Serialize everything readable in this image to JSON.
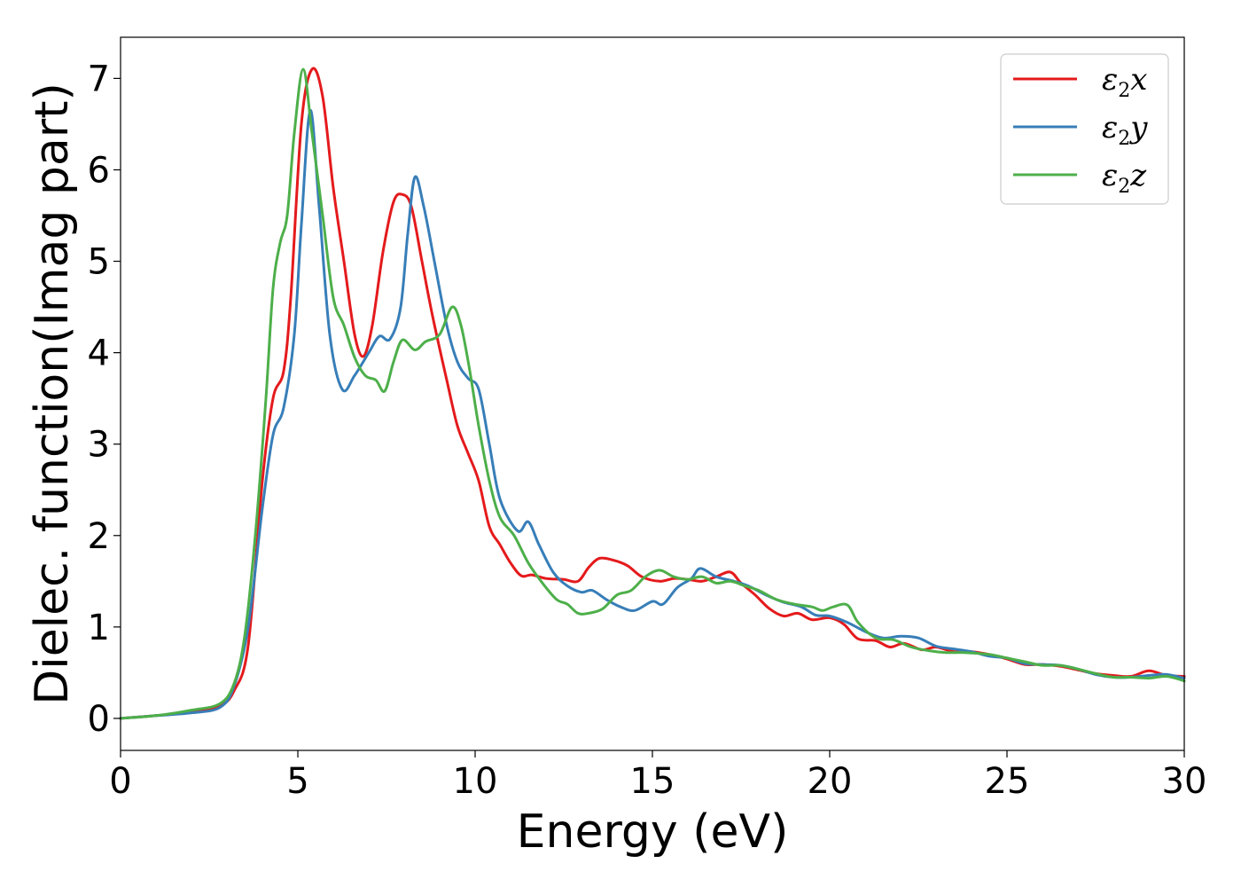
{
  "chart_data": {
    "type": "line",
    "title": "",
    "xlabel": "Energy (eV)",
    "ylabel": "Dielec. function(Imag part)",
    "xlim": [
      0,
      30
    ],
    "ylim": [
      -0.35,
      7.45
    ],
    "xticks": [
      0,
      5,
      10,
      15,
      20,
      25,
      30
    ],
    "yticks": [
      0,
      1,
      2,
      3,
      4,
      5,
      6,
      7
    ],
    "xtick_labels": [
      "0",
      "5",
      "10",
      "15",
      "20",
      "25",
      "30"
    ],
    "ytick_labels": [
      "0",
      "1",
      "2",
      "3",
      "4",
      "5",
      "6",
      "7"
    ],
    "grid": false,
    "legend_position": "top-right",
    "series": [
      {
        "name": "ε2x",
        "legend_symbol": "ε",
        "legend_subscript": "2",
        "legend_suffix": "x",
        "color": "#e41a1c",
        "points": [
          [
            0,
            0
          ],
          [
            1,
            0.03
          ],
          [
            2,
            0.07
          ],
          [
            2.8,
            0.14
          ],
          [
            3.2,
            0.3
          ],
          [
            3.6,
            0.8
          ],
          [
            4,
            2.6
          ],
          [
            4.3,
            3.5
          ],
          [
            4.6,
            3.8
          ],
          [
            4.8,
            4.6
          ],
          [
            5.1,
            6.5
          ],
          [
            5.4,
            7.1
          ],
          [
            5.7,
            6.8
          ],
          [
            6,
            5.8
          ],
          [
            6.3,
            5.0
          ],
          [
            6.6,
            4.2
          ],
          [
            6.85,
            3.96
          ],
          [
            7.1,
            4.3
          ],
          [
            7.4,
            5.1
          ],
          [
            7.7,
            5.65
          ],
          [
            7.95,
            5.73
          ],
          [
            8.2,
            5.6
          ],
          [
            8.5,
            5.0
          ],
          [
            8.8,
            4.4
          ],
          [
            9.2,
            3.7
          ],
          [
            9.5,
            3.2
          ],
          [
            9.8,
            2.9
          ],
          [
            10.1,
            2.6
          ],
          [
            10.4,
            2.1
          ],
          [
            10.7,
            1.9
          ],
          [
            11.0,
            1.7
          ],
          [
            11.3,
            1.56
          ],
          [
            11.6,
            1.57
          ],
          [
            12,
            1.53
          ],
          [
            12.5,
            1.52
          ],
          [
            12.9,
            1.5
          ],
          [
            13.2,
            1.65
          ],
          [
            13.5,
            1.75
          ],
          [
            13.9,
            1.73
          ],
          [
            14.3,
            1.67
          ],
          [
            14.7,
            1.55
          ],
          [
            15.2,
            1.5
          ],
          [
            15.6,
            1.53
          ],
          [
            16,
            1.52
          ],
          [
            16.4,
            1.5
          ],
          [
            16.8,
            1.55
          ],
          [
            17.2,
            1.6
          ],
          [
            17.5,
            1.48
          ],
          [
            17.9,
            1.35
          ],
          [
            18.3,
            1.2
          ],
          [
            18.7,
            1.12
          ],
          [
            19.1,
            1.15
          ],
          [
            19.5,
            1.08
          ],
          [
            20,
            1.1
          ],
          [
            20.4,
            1.03
          ],
          [
            20.8,
            0.87
          ],
          [
            21.3,
            0.85
          ],
          [
            21.7,
            0.78
          ],
          [
            22.1,
            0.82
          ],
          [
            22.6,
            0.75
          ],
          [
            23,
            0.78
          ],
          [
            23.5,
            0.73
          ],
          [
            24,
            0.73
          ],
          [
            24.5,
            0.7
          ],
          [
            25,
            0.65
          ],
          [
            25.5,
            0.59
          ],
          [
            26,
            0.59
          ],
          [
            26.5,
            0.57
          ],
          [
            27,
            0.53
          ],
          [
            27.5,
            0.49
          ],
          [
            28,
            0.47
          ],
          [
            28.5,
            0.46
          ],
          [
            29,
            0.52
          ],
          [
            29.5,
            0.47
          ],
          [
            30,
            0.46
          ]
        ]
      },
      {
        "name": "ε2y",
        "legend_symbol": "ε",
        "legend_subscript": "2",
        "legend_suffix": "y",
        "color": "#377eb8",
        "points": [
          [
            0,
            0
          ],
          [
            1,
            0.03
          ],
          [
            2,
            0.06
          ],
          [
            2.8,
            0.12
          ],
          [
            3.2,
            0.35
          ],
          [
            3.6,
            1.0
          ],
          [
            4,
            2.3
          ],
          [
            4.3,
            3.1
          ],
          [
            4.6,
            3.4
          ],
          [
            4.9,
            4.2
          ],
          [
            5.1,
            5.4
          ],
          [
            5.35,
            6.65
          ],
          [
            5.6,
            5.6
          ],
          [
            5.9,
            4.2
          ],
          [
            6.25,
            3.6
          ],
          [
            6.6,
            3.75
          ],
          [
            7,
            4.0
          ],
          [
            7.3,
            4.18
          ],
          [
            7.6,
            4.15
          ],
          [
            7.9,
            4.5
          ],
          [
            8.1,
            5.3
          ],
          [
            8.3,
            5.92
          ],
          [
            8.55,
            5.6
          ],
          [
            8.85,
            5.0
          ],
          [
            9.2,
            4.3
          ],
          [
            9.5,
            3.9
          ],
          [
            9.8,
            3.72
          ],
          [
            10.1,
            3.6
          ],
          [
            10.4,
            3.0
          ],
          [
            10.7,
            2.4
          ],
          [
            11.2,
            2.05
          ],
          [
            11.5,
            2.15
          ],
          [
            11.8,
            1.9
          ],
          [
            12.2,
            1.6
          ],
          [
            12.6,
            1.45
          ],
          [
            13,
            1.38
          ],
          [
            13.3,
            1.4
          ],
          [
            13.7,
            1.3
          ],
          [
            14.1,
            1.22
          ],
          [
            14.5,
            1.18
          ],
          [
            15,
            1.28
          ],
          [
            15.3,
            1.25
          ],
          [
            15.7,
            1.43
          ],
          [
            16.1,
            1.53
          ],
          [
            16.35,
            1.64
          ],
          [
            16.8,
            1.55
          ],
          [
            17.3,
            1.5
          ],
          [
            17.7,
            1.45
          ],
          [
            18.2,
            1.35
          ],
          [
            18.7,
            1.27
          ],
          [
            19.2,
            1.22
          ],
          [
            19.6,
            1.13
          ],
          [
            20,
            1.12
          ],
          [
            20.5,
            1.05
          ],
          [
            21,
            0.95
          ],
          [
            21.5,
            0.88
          ],
          [
            22,
            0.9
          ],
          [
            22.5,
            0.88
          ],
          [
            23,
            0.79
          ],
          [
            23.5,
            0.76
          ],
          [
            24,
            0.73
          ],
          [
            24.5,
            0.68
          ],
          [
            25,
            0.66
          ],
          [
            25.5,
            0.6
          ],
          [
            26,
            0.59
          ],
          [
            26.5,
            0.58
          ],
          [
            27,
            0.54
          ],
          [
            27.5,
            0.48
          ],
          [
            28,
            0.45
          ],
          [
            28.5,
            0.45
          ],
          [
            29,
            0.47
          ],
          [
            29.5,
            0.48
          ],
          [
            30,
            0.44
          ]
        ]
      },
      {
        "name": "ε2z",
        "legend_symbol": "ε",
        "legend_subscript": "2",
        "legend_suffix": "z",
        "color": "#4daf4a",
        "points": [
          [
            0,
            0
          ],
          [
            1,
            0.03
          ],
          [
            2,
            0.09
          ],
          [
            2.8,
            0.16
          ],
          [
            3.2,
            0.38
          ],
          [
            3.5,
            0.9
          ],
          [
            3.8,
            2.0
          ],
          [
            4.1,
            3.5
          ],
          [
            4.3,
            4.7
          ],
          [
            4.5,
            5.2
          ],
          [
            4.7,
            5.5
          ],
          [
            4.9,
            6.4
          ],
          [
            5.15,
            7.1
          ],
          [
            5.4,
            6.4
          ],
          [
            5.7,
            5.5
          ],
          [
            6.0,
            4.6
          ],
          [
            6.3,
            4.3
          ],
          [
            6.6,
            3.95
          ],
          [
            6.9,
            3.75
          ],
          [
            7.2,
            3.7
          ],
          [
            7.45,
            3.58
          ],
          [
            7.7,
            3.9
          ],
          [
            7.95,
            4.14
          ],
          [
            8.3,
            4.03
          ],
          [
            8.6,
            4.12
          ],
          [
            9.0,
            4.2
          ],
          [
            9.35,
            4.5
          ],
          [
            9.6,
            4.3
          ],
          [
            9.85,
            3.8
          ],
          [
            10.1,
            3.2
          ],
          [
            10.4,
            2.6
          ],
          [
            10.7,
            2.2
          ],
          [
            11.1,
            2.0
          ],
          [
            11.5,
            1.7
          ],
          [
            11.9,
            1.48
          ],
          [
            12.3,
            1.3
          ],
          [
            12.6,
            1.25
          ],
          [
            12.9,
            1.15
          ],
          [
            13.2,
            1.15
          ],
          [
            13.6,
            1.2
          ],
          [
            14,
            1.35
          ],
          [
            14.4,
            1.4
          ],
          [
            14.8,
            1.55
          ],
          [
            15.2,
            1.62
          ],
          [
            15.6,
            1.55
          ],
          [
            16,
            1.52
          ],
          [
            16.4,
            1.55
          ],
          [
            16.8,
            1.48
          ],
          [
            17.2,
            1.5
          ],
          [
            17.6,
            1.45
          ],
          [
            18,
            1.4
          ],
          [
            18.5,
            1.3
          ],
          [
            19,
            1.25
          ],
          [
            19.5,
            1.22
          ],
          [
            19.8,
            1.18
          ],
          [
            20.1,
            1.22
          ],
          [
            20.5,
            1.24
          ],
          [
            20.8,
            1.05
          ],
          [
            21.3,
            0.88
          ],
          [
            21.8,
            0.86
          ],
          [
            22.3,
            0.78
          ],
          [
            22.8,
            0.74
          ],
          [
            23.3,
            0.72
          ],
          [
            23.8,
            0.72
          ],
          [
            24.5,
            0.7
          ],
          [
            25,
            0.66
          ],
          [
            25.5,
            0.62
          ],
          [
            26,
            0.58
          ],
          [
            26.5,
            0.58
          ],
          [
            27,
            0.54
          ],
          [
            27.5,
            0.49
          ],
          [
            28,
            0.45
          ],
          [
            28.5,
            0.45
          ],
          [
            29,
            0.44
          ],
          [
            29.5,
            0.46
          ],
          [
            30,
            0.41
          ]
        ]
      }
    ]
  }
}
